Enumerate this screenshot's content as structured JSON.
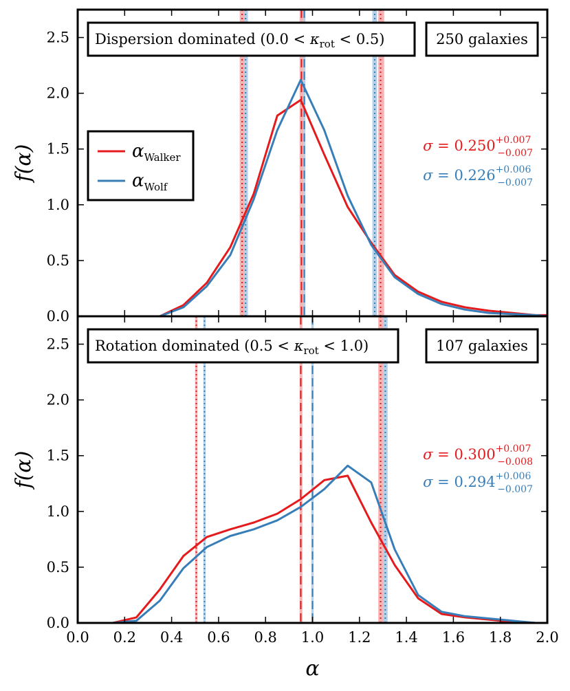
{
  "chart_data": [
    {
      "type": "line",
      "panel": "top",
      "title_box": {
        "prefix": "Dispersion dominated (0.0 < ",
        "symbol": "κ",
        "subscript": "rot",
        "suffix": " < 0.5)"
      },
      "count_label": "250 galaxies",
      "xlabel": "α",
      "ylabel": "f(α)",
      "xlim": [
        0.0,
        2.0
      ],
      "ylim": [
        0.0,
        2.75
      ],
      "y_ticks": [
        0.0,
        0.5,
        1.0,
        1.5,
        2.0,
        2.5
      ],
      "series": [
        {
          "name": "Walker",
          "legend_base": "α",
          "legend_sub": "Walker",
          "color": "#e41a1c",
          "x": [
            0.35,
            0.45,
            0.55,
            0.65,
            0.75,
            0.85,
            0.95,
            1.05,
            1.15,
            1.25,
            1.35,
            1.45,
            1.55,
            1.65,
            1.75,
            1.85,
            1.95,
            2.0
          ],
          "y": [
            0.0,
            0.1,
            0.3,
            0.62,
            1.1,
            1.8,
            1.94,
            1.45,
            0.98,
            0.66,
            0.37,
            0.22,
            0.13,
            0.08,
            0.05,
            0.03,
            0.01,
            0.01
          ]
        },
        {
          "name": "Wolf",
          "legend_base": "α",
          "legend_sub": "Wolf",
          "color": "#377eb8",
          "x": [
            0.35,
            0.45,
            0.55,
            0.65,
            0.75,
            0.85,
            0.95,
            1.05,
            1.15,
            1.25,
            1.35,
            1.45,
            1.55,
            1.65,
            1.75,
            1.85,
            1.95,
            2.0
          ],
          "y": [
            0.0,
            0.08,
            0.27,
            0.55,
            1.05,
            1.67,
            2.12,
            1.67,
            1.08,
            0.64,
            0.35,
            0.2,
            0.11,
            0.06,
            0.03,
            0.02,
            0.01,
            0.0
          ]
        }
      ],
      "vlines": [
        {
          "series": "Walker",
          "style": "dotted",
          "x": 0.7,
          "band": [
            0.69,
            0.71
          ]
        },
        {
          "series": "Wolf",
          "style": "dotted",
          "x": 0.715,
          "band": [
            0.71,
            0.725
          ]
        },
        {
          "series": "Walker",
          "style": "dashed",
          "x": 0.953,
          "band": [
            0.945,
            0.96
          ]
        },
        {
          "series": "Wolf",
          "style": "dashed",
          "x": 0.965,
          "band": [
            0.96,
            0.97
          ]
        },
        {
          "series": "Wolf",
          "style": "dotted",
          "x": 1.265,
          "band": [
            1.255,
            1.275
          ]
        },
        {
          "series": "Walker",
          "style": "dotted",
          "x": 1.29,
          "band": [
            1.28,
            1.305
          ]
        }
      ],
      "sigma_labels": [
        {
          "series": "Walker",
          "prefix": "σ = ",
          "value": "0.250",
          "sup": "+0.007",
          "sub": "−0.007"
        },
        {
          "series": "Wolf",
          "prefix": "σ = ",
          "value": "0.226",
          "sup": "+0.006",
          "sub": "−0.007"
        }
      ]
    },
    {
      "type": "line",
      "panel": "bottom",
      "title_box": {
        "prefix": "Rotation dominated (0.5 < ",
        "symbol": "κ",
        "subscript": "rot",
        "suffix": " < 1.0)"
      },
      "count_label": "107 galaxies",
      "xlabel": "α",
      "ylabel": "f(α)",
      "xlim": [
        0.0,
        2.0
      ],
      "ylim": [
        0.0,
        2.75
      ],
      "x_ticks": [
        0.0,
        0.2,
        0.4,
        0.6,
        0.8,
        1.0,
        1.2,
        1.4,
        1.6,
        1.8,
        2.0
      ],
      "x_tick_labels": [
        "0.0",
        "0.2",
        "0.4",
        "0.6",
        "0.8",
        "1.0",
        "1.2",
        "1.4",
        "1.6",
        "1.8",
        "2.0"
      ],
      "y_ticks": [
        0.0,
        0.5,
        1.0,
        1.5,
        2.0,
        2.5
      ],
      "y_tick_labels": [
        "0.0",
        "0.5",
        "1.0",
        "1.5",
        "2.0",
        "2.5"
      ],
      "series": [
        {
          "name": "Walker",
          "color": "#e41a1c",
          "x": [
            0.15,
            0.25,
            0.35,
            0.45,
            0.55,
            0.65,
            0.75,
            0.85,
            0.95,
            1.05,
            1.15,
            1.25,
            1.35,
            1.45,
            1.55,
            1.65,
            1.75,
            1.85,
            1.95,
            2.0
          ],
          "y": [
            0.0,
            0.05,
            0.3,
            0.6,
            0.77,
            0.84,
            0.9,
            0.98,
            1.11,
            1.28,
            1.32,
            0.9,
            0.52,
            0.22,
            0.08,
            0.05,
            0.03,
            0.01,
            0.0,
            0.0
          ]
        },
        {
          "name": "Wolf",
          "color": "#377eb8",
          "x": [
            0.15,
            0.25,
            0.35,
            0.45,
            0.55,
            0.65,
            0.75,
            0.85,
            0.95,
            1.05,
            1.15,
            1.25,
            1.35,
            1.45,
            1.55,
            1.65,
            1.75,
            1.85,
            1.95,
            2.0
          ],
          "y": [
            0.0,
            0.02,
            0.2,
            0.49,
            0.68,
            0.78,
            0.84,
            0.92,
            1.04,
            1.2,
            1.41,
            1.26,
            0.66,
            0.25,
            0.1,
            0.06,
            0.04,
            0.02,
            0.0,
            0.0
          ]
        }
      ],
      "vlines": [
        {
          "series": "Walker",
          "style": "dotted",
          "x": 0.505,
          "band": [
            0.5,
            0.51
          ]
        },
        {
          "series": "Wolf",
          "style": "dotted",
          "x": 0.54,
          "band": [
            0.535,
            0.545
          ]
        },
        {
          "series": "Walker",
          "style": "dashed",
          "x": 0.95,
          "band": [
            0.945,
            0.957
          ]
        },
        {
          "series": "Wolf",
          "style": "dashed",
          "x": 1.0,
          "band": [
            0.995,
            1.005
          ]
        },
        {
          "series": "Walker",
          "style": "dotted",
          "x": 1.29,
          "band": [
            1.28,
            1.3
          ]
        },
        {
          "series": "Wolf",
          "style": "dotted",
          "x": 1.31,
          "band": [
            1.3,
            1.32
          ]
        }
      ],
      "sigma_labels": [
        {
          "series": "Walker",
          "prefix": "σ = ",
          "value": "0.300",
          "sup": "+0.007",
          "sub": "−0.008"
        },
        {
          "series": "Wolf",
          "prefix": "σ = ",
          "value": "0.294",
          "sup": "+0.006",
          "sub": "−0.007"
        }
      ]
    }
  ]
}
